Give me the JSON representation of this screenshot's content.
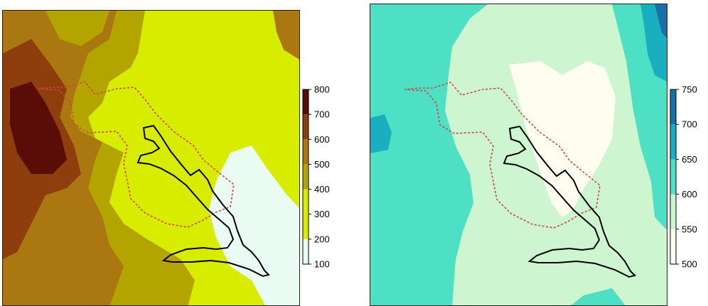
{
  "maps": [
    {
      "id": "left",
      "legend": {
        "ticks": [
          "100",
          "200",
          "300",
          "400",
          "500",
          "600",
          "700",
          "800"
        ],
        "bands": [
          {
            "from": 100,
            "to": 200,
            "color": "#e9fbf2"
          },
          {
            "from": 200,
            "to": 400,
            "color": "#d8ec00"
          },
          {
            "from": 400,
            "to": 500,
            "color": "#b4a400"
          },
          {
            "from": 500,
            "to": 600,
            "color": "#aa7710"
          },
          {
            "from": 600,
            "to": 700,
            "color": "#8e3d0c"
          },
          {
            "from": 700,
            "to": 800,
            "color": "#5a0c06"
          }
        ]
      }
    },
    {
      "id": "right",
      "legend": {
        "ticks": [
          "500",
          "550",
          "600",
          "650",
          "700",
          "750"
        ],
        "bands": [
          {
            "from": 500,
            "to": 550,
            "color": "#fffdf0"
          },
          {
            "from": 550,
            "to": 600,
            "color": "#cdf5cf"
          },
          {
            "from": 600,
            "to": 650,
            "color": "#4ee0c4"
          },
          {
            "from": 650,
            "to": 700,
            "color": "#1aafc0"
          },
          {
            "from": 700,
            "to": 750,
            "color": "#1870a6"
          }
        ]
      }
    }
  ],
  "colors": {
    "basin_outline": "#000000",
    "region_outline": "#d2453a"
  }
}
